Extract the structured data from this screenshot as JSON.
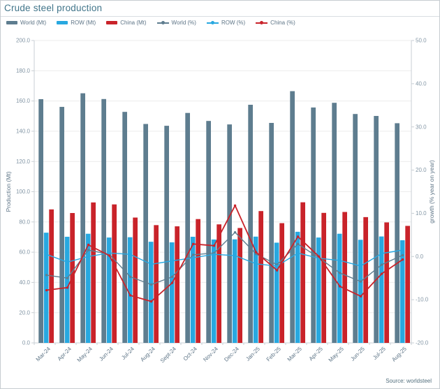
{
  "header": {
    "title": "Crude steel production"
  },
  "footer": {
    "source": "Source: worldsteel"
  },
  "colors": {
    "world": "#5e7d8f",
    "row": "#28a8e0",
    "china": "#c9232a",
    "title_text": "#41758a",
    "muted_text": "#5d7486",
    "tick_text": "#8497a6",
    "grid": "#ececec",
    "axis_line": "#c8cfd4"
  },
  "legend": [
    {
      "label": "World (Mt)",
      "type": "bar",
      "color": "#5e7d8f"
    },
    {
      "label": "ROW (Mt)",
      "type": "bar",
      "color": "#28a8e0"
    },
    {
      "label": "China (Mt)",
      "type": "bar",
      "color": "#c9232a"
    },
    {
      "label": "World (%)",
      "type": "line",
      "color": "#5e7d8f"
    },
    {
      "label": "ROW (%)",
      "type": "line",
      "color": "#28a8e0"
    },
    {
      "label": "China (%)",
      "type": "line",
      "color": "#c9232a"
    }
  ],
  "chart_data": {
    "type": "bar+line",
    "title": "Crude steel production",
    "categories": [
      "Mar-24",
      "Apr-24",
      "May-24",
      "Jun-24",
      "Jul-24",
      "Aug-24",
      "Sept-24",
      "Oct-24",
      "Nov-24",
      "Dec-24",
      "Jan-25",
      "Feb-25",
      "Mar-25",
      "Apr-25",
      "May-25",
      "Jun-25",
      "Jul-25",
      "Aug-25"
    ],
    "left_axis": {
      "label": "Production (Mt)",
      "min": 0,
      "max": 200,
      "step": 20
    },
    "right_axis": {
      "label": "growth (% year on year)",
      "min": -20,
      "max": 50,
      "step": 10
    },
    "grid": true,
    "legend_position": "top",
    "series": [
      {
        "name": "World (Mt)",
        "type": "bar",
        "axis": "left",
        "color": "#5e7d8f",
        "values": [
          161.2,
          156.1,
          165.1,
          161.3,
          152.8,
          144.8,
          143.6,
          152.1,
          146.8,
          144.5,
          157.5,
          145.5,
          166.5,
          155.7,
          158.8,
          151.4,
          150.1,
          145.3
        ]
      },
      {
        "name": "ROW (Mt)",
        "type": "bar",
        "axis": "left",
        "color": "#28a8e0",
        "values": [
          72.9,
          70.2,
          72.2,
          69.7,
          69.9,
          66.9,
          66.5,
          70.2,
          68.4,
          68.5,
          70.3,
          66.3,
          73.5,
          69.7,
          72.2,
          68.2,
          70.4,
          67.9
        ]
      },
      {
        "name": "China (Mt)",
        "type": "bar",
        "axis": "left",
        "color": "#c9232a",
        "values": [
          88.3,
          85.9,
          92.9,
          91.6,
          82.9,
          77.9,
          77.1,
          81.9,
          78.4,
          76.0,
          87.2,
          79.2,
          93.0,
          86.0,
          86.6,
          83.2,
          79.7,
          77.4
        ]
      },
      {
        "name": "World (%)",
        "type": "line",
        "axis": "right",
        "color": "#5e7d8f",
        "values": [
          -4.3,
          -5.0,
          1.5,
          0.5,
          -4.7,
          -6.5,
          -4.7,
          0.4,
          0.8,
          5.6,
          0.6,
          -1.9,
          2.9,
          -0.3,
          -3.8,
          -5.8,
          -1.9,
          0.3
        ]
      },
      {
        "name": "ROW (%)",
        "type": "line",
        "axis": "right",
        "color": "#28a8e0",
        "values": [
          0.5,
          -1.3,
          0.0,
          0.8,
          0.5,
          -1.8,
          -1.0,
          -0.3,
          0.5,
          0.2,
          -1.7,
          -2.2,
          0.8,
          -0.4,
          -0.9,
          -2.2,
          0.7,
          1.5
        ]
      },
      {
        "name": "China (%)",
        "type": "line",
        "axis": "right",
        "color": "#c9232a",
        "values": [
          -7.8,
          -7.2,
          2.7,
          0.2,
          -9.0,
          -10.4,
          -6.1,
          2.9,
          2.5,
          11.8,
          1.0,
          -3.2,
          4.6,
          0.0,
          -6.9,
          -9.2,
          -4.0,
          -0.7
        ]
      }
    ]
  }
}
